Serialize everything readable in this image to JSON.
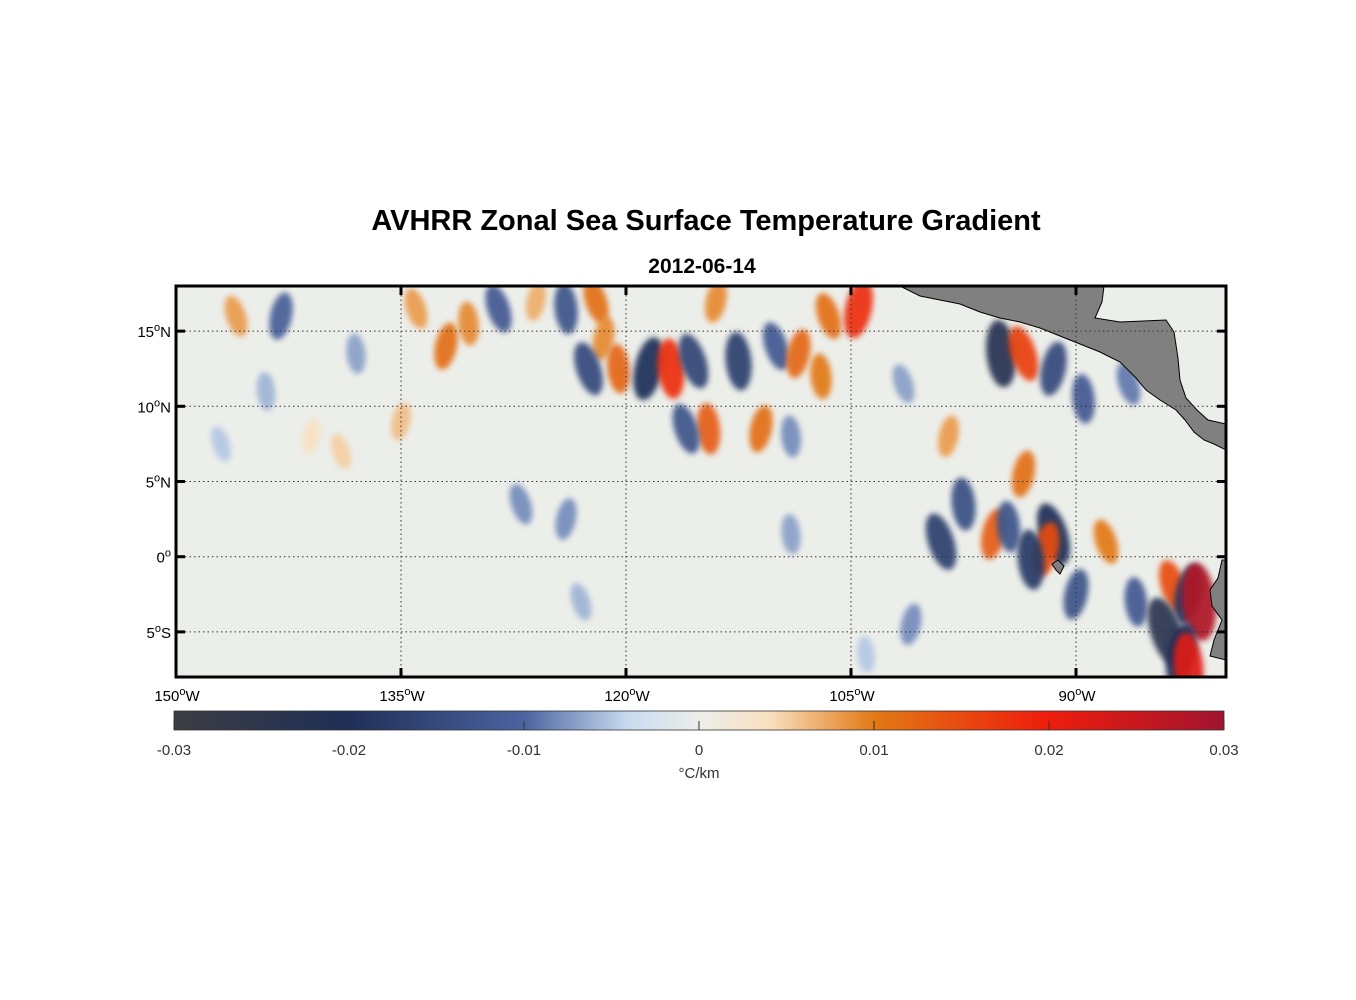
{
  "chart_data": {
    "type": "heatmap",
    "title": "AVHRR Zonal Sea Surface Temperature Gradient",
    "subtitle": "2012-06-14",
    "x_range": [
      -150,
      -80
    ],
    "y_range": [
      -8,
      18
    ],
    "x_ticks": [
      {
        "value": -150,
        "deg": "150",
        "hemi": "W"
      },
      {
        "value": -135,
        "deg": "135",
        "hemi": "W"
      },
      {
        "value": -120,
        "deg": "120",
        "hemi": "W"
      },
      {
        "value": -105,
        "deg": "105",
        "hemi": "W"
      },
      {
        "value": -90,
        "deg": "90",
        "hemi": "W"
      }
    ],
    "y_ticks": [
      {
        "value": 15,
        "deg": "15",
        "hemi": "N"
      },
      {
        "value": 10,
        "deg": "10",
        "hemi": "N"
      },
      {
        "value": 5,
        "deg": "5",
        "hemi": "N"
      },
      {
        "value": 0,
        "deg": "0",
        "hemi": ""
      },
      {
        "value": -5,
        "deg": "5",
        "hemi": "S"
      }
    ],
    "colorbar": {
      "range": [
        -0.03,
        0.03
      ],
      "ticks": [
        "-0.03",
        "-0.02",
        "-0.01",
        "0",
        "0.01",
        "0.02",
        "0.03"
      ],
      "label": "°C/km",
      "stops": [
        {
          "v": -0.03,
          "c": "#3c3d41"
        },
        {
          "v": -0.02,
          "c": "#1f2f58"
        },
        {
          "v": -0.01,
          "c": "#4b64a0"
        },
        {
          "v": -0.004,
          "c": "#c9dcf0"
        },
        {
          "v": 0,
          "c": "#eceeea"
        },
        {
          "v": 0.004,
          "c": "#f9e0c0"
        },
        {
          "v": 0.01,
          "c": "#e27914"
        },
        {
          "v": 0.02,
          "c": "#ee1c0c"
        },
        {
          "v": 0.03,
          "c": "#a1142f"
        }
      ]
    },
    "gradient_features": [
      {
        "lon": -146,
        "lat": 16,
        "value": 0.008
      },
      {
        "lon": -143,
        "lat": 16,
        "value": -0.011
      },
      {
        "lon": -138,
        "lat": 13.5,
        "value": -0.007
      },
      {
        "lon": -134,
        "lat": 16.5,
        "value": 0.008
      },
      {
        "lon": -132,
        "lat": 14,
        "value": 0.011
      },
      {
        "lon": -130.5,
        "lat": 15.5,
        "value": 0.009
      },
      {
        "lon": -128.5,
        "lat": 16.5,
        "value": -0.012
      },
      {
        "lon": -126,
        "lat": 17,
        "value": 0.007
      },
      {
        "lon": -124,
        "lat": 16.5,
        "value": -0.013
      },
      {
        "lon": -122,
        "lat": 17,
        "value": 0.011
      },
      {
        "lon": -121.5,
        "lat": 14.5,
        "value": 0.009
      },
      {
        "lon": -120.5,
        "lat": 12.5,
        "value": 0.012
      },
      {
        "lon": -122.5,
        "lat": 12.5,
        "value": -0.015
      },
      {
        "lon": -118.5,
        "lat": 12.5,
        "value": -0.02
      },
      {
        "lon": -117,
        "lat": 12.5,
        "value": 0.018
      },
      {
        "lon": -115.5,
        "lat": 13,
        "value": -0.016
      },
      {
        "lon": -114,
        "lat": 17,
        "value": 0.009
      },
      {
        "lon": -112.5,
        "lat": 13,
        "value": -0.017
      },
      {
        "lon": -110,
        "lat": 14,
        "value": -0.012
      },
      {
        "lon": -108.5,
        "lat": 13.5,
        "value": 0.012
      },
      {
        "lon": -107,
        "lat": 12,
        "value": 0.01
      },
      {
        "lon": -106.5,
        "lat": 16,
        "value": 0.011
      },
      {
        "lon": -104.5,
        "lat": 16.5,
        "value": 0.018
      },
      {
        "lon": -114.5,
        "lat": 8.5,
        "value": 0.013
      },
      {
        "lon": -116,
        "lat": 8.5,
        "value": -0.013
      },
      {
        "lon": -111,
        "lat": 8.5,
        "value": 0.011
      },
      {
        "lon": -109,
        "lat": 8,
        "value": -0.008
      },
      {
        "lon": -101.5,
        "lat": 11.5,
        "value": -0.007
      },
      {
        "lon": -98.5,
        "lat": 8,
        "value": 0.008
      },
      {
        "lon": -95,
        "lat": 13.5,
        "value": -0.022
      },
      {
        "lon": -93.5,
        "lat": 13.5,
        "value": 0.016
      },
      {
        "lon": -91.5,
        "lat": 12.5,
        "value": -0.015
      },
      {
        "lon": -89.5,
        "lat": 10.5,
        "value": -0.012
      },
      {
        "lon": -86.5,
        "lat": 11.5,
        "value": -0.009
      },
      {
        "lon": -93.5,
        "lat": 5.5,
        "value": 0.011
      },
      {
        "lon": -97.5,
        "lat": 3.5,
        "value": -0.014
      },
      {
        "lon": -99,
        "lat": 1,
        "value": -0.017
      },
      {
        "lon": -95.5,
        "lat": 1.5,
        "value": 0.013
      },
      {
        "lon": -94.5,
        "lat": 2,
        "value": -0.013
      },
      {
        "lon": -91.5,
        "lat": 1.5,
        "value": -0.02
      },
      {
        "lon": -92,
        "lat": 0.5,
        "value": 0.015
      },
      {
        "lon": -93,
        "lat": -0.2,
        "value": -0.018
      },
      {
        "lon": -88,
        "lat": 1,
        "value": 0.01
      },
      {
        "lon": -90,
        "lat": -2.5,
        "value": -0.013
      },
      {
        "lon": -86,
        "lat": -3,
        "value": -0.012
      },
      {
        "lon": -83.5,
        "lat": -2,
        "value": 0.015
      },
      {
        "lon": -82.5,
        "lat": -2.5,
        "value": -0.018
      },
      {
        "lon": -81.8,
        "lat": -3,
        "value": 0.028
      },
      {
        "lon": -84,
        "lat": -5,
        "value": -0.024
      },
      {
        "lon": -83,
        "lat": -6.5,
        "value": -0.02
      },
      {
        "lon": -82.5,
        "lat": -7.3,
        "value": 0.022
      },
      {
        "lon": -127,
        "lat": 3.5,
        "value": -0.008
      },
      {
        "lon": -124,
        "lat": 2.5,
        "value": -0.008
      },
      {
        "lon": -109,
        "lat": 1.5,
        "value": -0.007
      },
      {
        "lon": -123,
        "lat": -3,
        "value": -0.006
      },
      {
        "lon": -101,
        "lat": -4.5,
        "value": -0.008
      },
      {
        "lon": -104,
        "lat": -6.5,
        "value": -0.005
      },
      {
        "lon": -139,
        "lat": 7,
        "value": 0.005
      },
      {
        "lon": -135,
        "lat": 9,
        "value": 0.006
      },
      {
        "lon": -144,
        "lat": 11,
        "value": -0.006
      },
      {
        "lon": -147,
        "lat": 7.5,
        "value": -0.005
      },
      {
        "lon": -141,
        "lat": 8,
        "value": 0.004
      }
    ]
  }
}
